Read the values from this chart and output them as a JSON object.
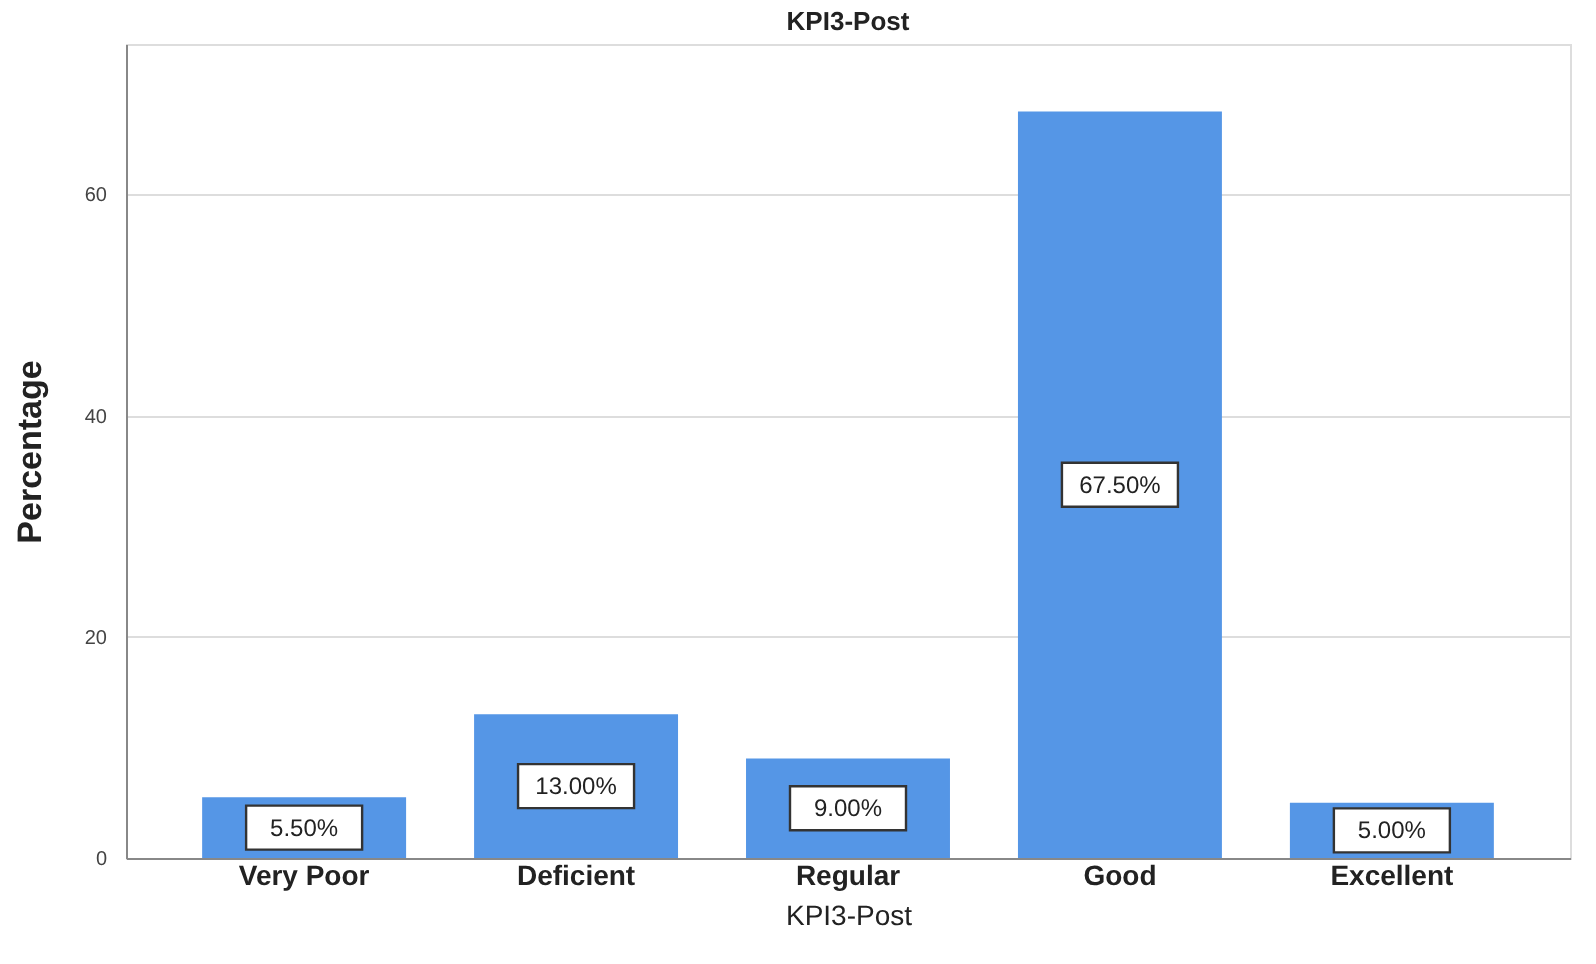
{
  "chart_data": {
    "type": "bar",
    "title": "KPI3-Post",
    "xlabel": "KPI3-Post",
    "ylabel": "Percentage",
    "categories": [
      "Very Poor",
      "Deficient",
      "Regular",
      "Good",
      "Excellent"
    ],
    "values": [
      5.5,
      13.0,
      9.0,
      67.5,
      5.0
    ],
    "value_labels": [
      "5.50%",
      "13.00%",
      "9.00%",
      "67.50%",
      "5.00%"
    ],
    "color": "#5596e6",
    "ylim": [
      0,
      73.6
    ],
    "yticks": [
      0,
      20,
      40,
      60
    ],
    "grid": "y"
  }
}
